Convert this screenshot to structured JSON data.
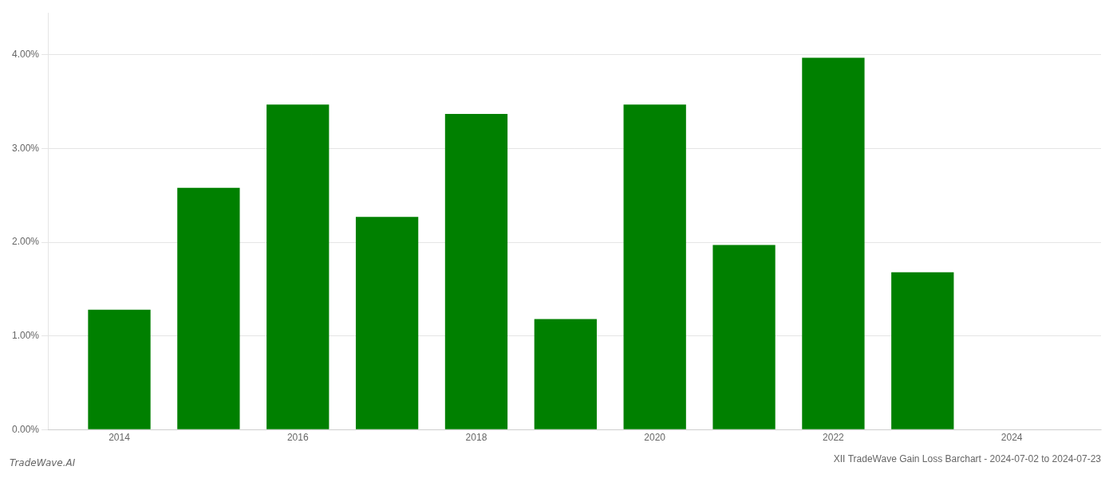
{
  "chart_data": {
    "type": "bar",
    "title": "XII TradeWave Gain Loss Barchart - 2024-07-02 to 2024-07-23",
    "annotations": [
      "TradeWave.AI"
    ],
    "x": [
      2014,
      2015,
      2016,
      2017,
      2018,
      2019,
      2020,
      2021,
      2022,
      2023
    ],
    "values": [
      0.0128,
      0.0258,
      0.0347,
      0.0227,
      0.0337,
      0.0118,
      0.0347,
      0.0197,
      0.0397,
      0.0168
    ],
    "color": "#008000",
    "xlim": [
      2013.2,
      2025.0
    ],
    "xticks": [
      2014,
      2016,
      2018,
      2020,
      2022,
      2024
    ],
    "ylim": [
      0.0,
      0.0445
    ],
    "yticks": [
      {
        "value": 0.0,
        "label": "0.00%"
      },
      {
        "value": 0.01,
        "label": "1.00%"
      },
      {
        "value": 0.02,
        "label": "2.00%"
      },
      {
        "value": 0.03,
        "label": "3.00%"
      },
      {
        "value": 0.04,
        "label": "4.00%"
      }
    ],
    "grid": "y"
  }
}
